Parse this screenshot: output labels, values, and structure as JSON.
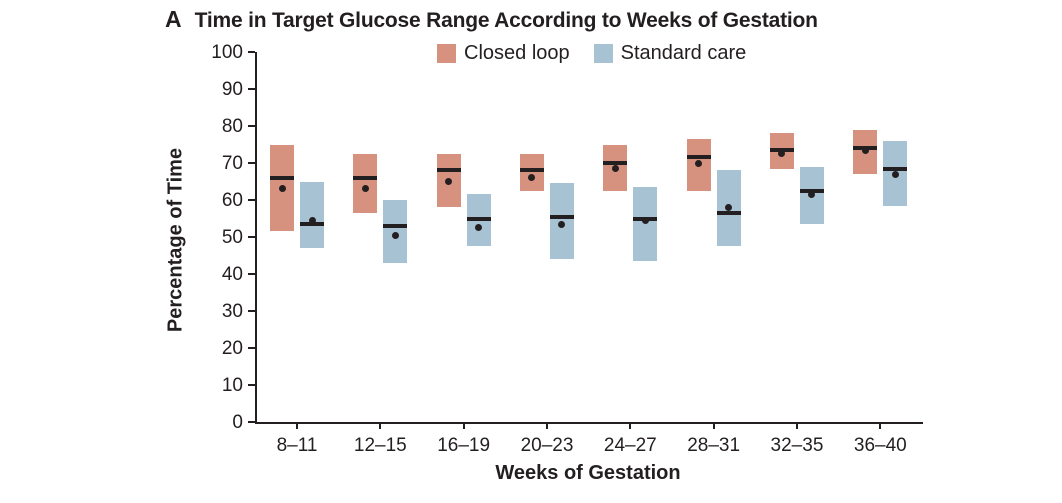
{
  "page": {
    "background": "#ffffff",
    "text_color": "#231f20"
  },
  "figure": {
    "panel_label": "A",
    "title": "Time in Target Glucose Range According to Weeks of Gestation"
  },
  "chart_data": {
    "type": "box",
    "title": "Time in Target Glucose Range According to Weeks of Gestation",
    "xlabel": "Weeks of Gestation",
    "ylabel": "Percentage of Time",
    "ylim": [
      0,
      100
    ],
    "ytick_interval": 10,
    "grid": false,
    "legend_position": "top-center",
    "categories": [
      "8–11",
      "12–15",
      "16–19",
      "20–23",
      "24–27",
      "28–31",
      "32–35",
      "36–40"
    ],
    "series": [
      {
        "name": "Closed loop",
        "color": "#d6917f",
        "boxes": [
          {
            "low": 51.5,
            "high": 75,
            "median": 66,
            "mean": 63
          },
          {
            "low": 56.5,
            "high": 72.5,
            "median": 66,
            "mean": 63
          },
          {
            "low": 58,
            "high": 72.5,
            "median": 68,
            "mean": 65
          },
          {
            "low": 62.5,
            "high": 72.5,
            "median": 68,
            "mean": 66
          },
          {
            "low": 62.5,
            "high": 75,
            "median": 70,
            "mean": 68.5
          },
          {
            "low": 62.5,
            "high": 76.5,
            "median": 71.5,
            "mean": 70
          },
          {
            "low": 68.5,
            "high": 78,
            "median": 73.5,
            "mean": 72.5
          },
          {
            "low": 67,
            "high": 79,
            "median": 74,
            "mean": 73.5
          }
        ]
      },
      {
        "name": "Standard care",
        "color": "#a6c2d3",
        "boxes": [
          {
            "low": 47,
            "high": 65,
            "median": 53.5,
            "mean": 54.5
          },
          {
            "low": 43,
            "high": 60,
            "median": 53,
            "mean": 50.5
          },
          {
            "low": 47.5,
            "high": 61.5,
            "median": 55,
            "mean": 52.5
          },
          {
            "low": 44,
            "high": 64.5,
            "median": 55.5,
            "mean": 53.5
          },
          {
            "low": 43.5,
            "high": 63.5,
            "median": 55,
            "mean": 54.5
          },
          {
            "low": 47.5,
            "high": 68,
            "median": 56.5,
            "mean": 58
          },
          {
            "low": 53.5,
            "high": 69,
            "median": 62.5,
            "mean": 61.5
          },
          {
            "low": 58.5,
            "high": 76,
            "median": 68.5,
            "mean": 67
          }
        ]
      }
    ]
  }
}
